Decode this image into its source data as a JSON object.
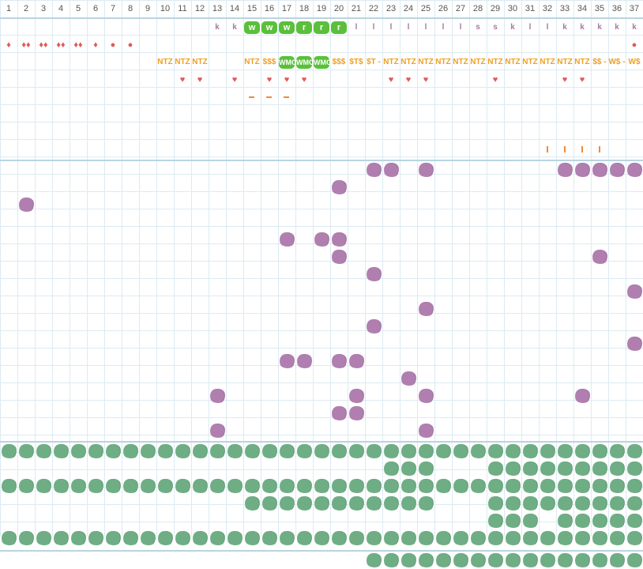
{
  "columns": [
    "1",
    "2",
    "3",
    "4",
    "5",
    "6",
    "7",
    "8",
    "9",
    "10",
    "11",
    "12",
    "13",
    "14",
    "15",
    "16",
    "17",
    "18",
    "19",
    "20",
    "21",
    "22",
    "23",
    "24",
    "25",
    "26",
    "27",
    "28",
    "29",
    "30",
    "31",
    "32",
    "33",
    "34",
    "35",
    "36",
    "37"
  ],
  "colors": {
    "grid_line": "#dcebf2",
    "section_border": "#b9d4e0",
    "purple": "#b07fb0",
    "green": "#6fae84",
    "red": "#e05a5a",
    "orange": "#f0a020",
    "badge_green": "#5bbf3b",
    "letter_purple": "#a57aa0"
  },
  "top_section": {
    "rows": [
      {
        "type": "text",
        "color": "#a57aa0",
        "cells": {
          "13": "k",
          "14": "k",
          "21": "l",
          "22": "l",
          "23": "l",
          "24": "l",
          "25": "l",
          "26": "l",
          "27": "l",
          "28": "s",
          "29": "s",
          "30": "k",
          "31": "l",
          "32": "l",
          "33": "k",
          "34": "k",
          "35": "k",
          "36": "k",
          "37": "k"
        },
        "badges": {
          "15": "w",
          "16": "w",
          "17": "w",
          "18": "r",
          "19": "r",
          "20": "r"
        }
      },
      {
        "type": "icon",
        "icon": "drop-icon",
        "color": "#e05a5a",
        "cells": {
          "1": "♦",
          "2": "♦♦",
          "3": "♦♦",
          "4": "♦♦",
          "5": "♦♦",
          "6": "♦",
          "7": "●",
          "8": "●",
          "37": "●"
        }
      },
      {
        "type": "text",
        "color": "#f0a020",
        "cells": {
          "10": "NTZ",
          "11": "NTZ",
          "12": "NTZ",
          "15": "NTZ",
          "16": "$$$",
          "20": "$$$",
          "21": "$T$",
          "22": "$T -",
          "23": "NTZ",
          "24": "NTZ",
          "25": "NTZ",
          "26": "NTZ",
          "27": "NTZ",
          "28": "NTZ",
          "29": "NTZ",
          "30": "NTZ",
          "31": "NTZ",
          "32": "NTZ",
          "33": "NTZ",
          "34": "NTZ",
          "35": "$$ -",
          "36": "W$ -",
          "37": "W$"
        },
        "badges": {
          "17": "WMO",
          "18": "WMO",
          "19": "WMO"
        }
      },
      {
        "type": "icon",
        "icon": "heart-icon",
        "color": "#e05a5a",
        "cells": {
          "11": "♥",
          "12": "♥",
          "14": "♥",
          "16": "♥",
          "17": "♥",
          "18": "♥",
          "23": "♥",
          "24": "♥",
          "25": "♥",
          "29": "♥",
          "33": "♥",
          "34": "♥"
        }
      },
      {
        "type": "mark",
        "mark": "dash",
        "cols": [
          "15",
          "16",
          "17"
        ]
      },
      {
        "type": "empty"
      },
      {
        "type": "empty"
      },
      {
        "type": "mark",
        "mark": "tick",
        "cols": [
          "32",
          "33",
          "34",
          "35"
        ]
      }
    ]
  },
  "purple_section": {
    "rows": [
      [
        "22",
        "23",
        "25",
        "33",
        "34",
        "35",
        "36",
        "37"
      ],
      [
        "20"
      ],
      [
        "2"
      ],
      [],
      [
        "17",
        "19",
        "20"
      ],
      [
        "20",
        "35"
      ],
      [
        "22"
      ],
      [
        "37"
      ],
      [
        "25"
      ],
      [
        "22"
      ],
      [
        "37"
      ],
      [
        "17",
        "18",
        "20",
        "21"
      ],
      [
        "24"
      ],
      [
        "13",
        "21",
        "25",
        "34"
      ],
      [
        "20",
        "21"
      ],
      [
        "13",
        "25"
      ]
    ]
  },
  "green_section": {
    "rows": [
      {
        "ranges": [
          [
            1,
            37
          ]
        ]
      },
      {
        "ranges": [
          [
            23,
            25
          ],
          [
            29,
            37
          ]
        ]
      },
      {
        "ranges": [
          [
            1,
            37
          ]
        ]
      },
      {
        "ranges": [
          [
            15,
            25
          ],
          [
            29,
            37
          ]
        ]
      },
      {
        "ranges": [
          [
            29,
            31
          ],
          [
            33,
            37
          ]
        ]
      },
      {
        "ranges": [
          [
            1,
            37
          ]
        ]
      }
    ]
  },
  "bottom_section": {
    "rows": [
      {
        "ranges": [
          [
            22,
            37
          ]
        ]
      }
    ]
  }
}
